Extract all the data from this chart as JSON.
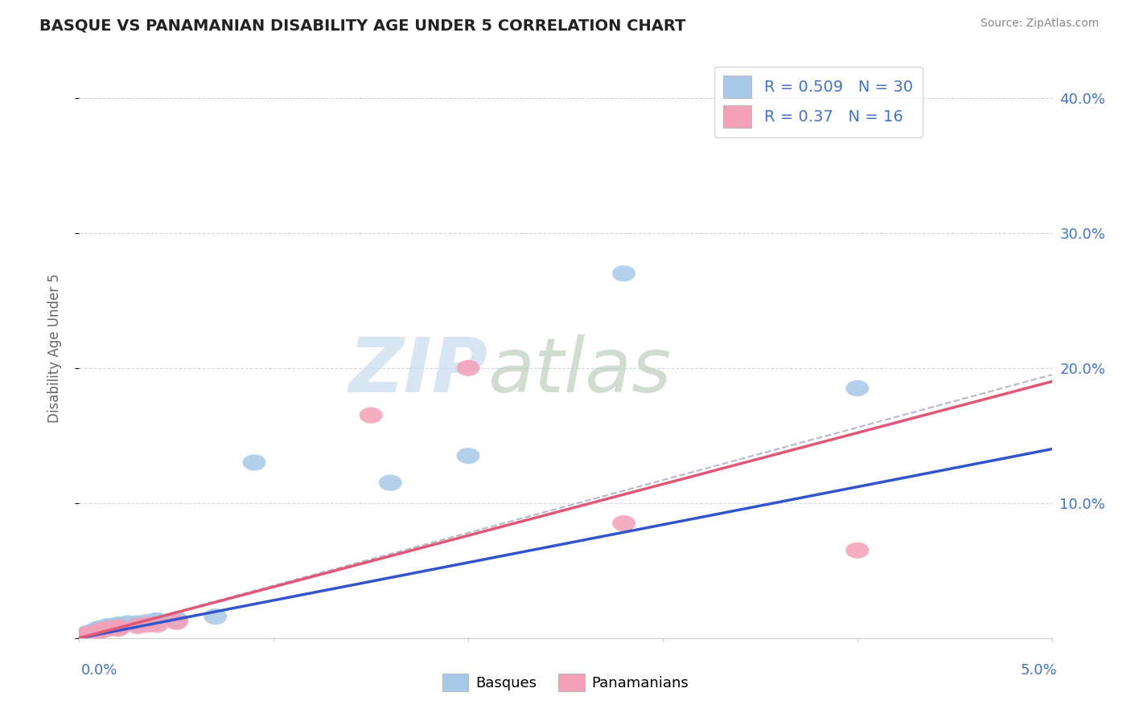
{
  "title": "BASQUE VS PANAMANIAN DISABILITY AGE UNDER 5 CORRELATION CHART",
  "source": "Source: ZipAtlas.com",
  "ylabel": "Disability Age Under 5",
  "x_range": [
    0.0,
    0.05
  ],
  "y_range": [
    0.0,
    0.43
  ],
  "basque_R": 0.509,
  "basque_N": 30,
  "panama_R": 0.37,
  "panama_N": 16,
  "basque_color": "#a8c8e8",
  "panama_color": "#f4a0b8",
  "basque_line_color": "#3355cc",
  "panama_line_color": "#e05878",
  "dashed_color": "#b8b8c8",
  "label_color": "#4472c4",
  "grid_color": "#d0d8e8",
  "background_color": "#ffffff",
  "basque_x": [
    0.0002,
    0.0004,
    0.0005,
    0.0006,
    0.0007,
    0.0008,
    0.0009,
    0.001,
    0.001,
    0.0012,
    0.0013,
    0.0015,
    0.0015,
    0.002,
    0.002,
    0.0022,
    0.0025,
    0.003,
    0.003,
    0.0035,
    0.004,
    0.004,
    0.005,
    0.005,
    0.007,
    0.009,
    0.016,
    0.02,
    0.028,
    0.04
  ],
  "basque_y": [
    0.002,
    0.003,
    0.004,
    0.004,
    0.005,
    0.005,
    0.006,
    0.006,
    0.007,
    0.007,
    0.008,
    0.008,
    0.009,
    0.009,
    0.01,
    0.01,
    0.011,
    0.01,
    0.011,
    0.012,
    0.013,
    0.013,
    0.013,
    0.014,
    0.016,
    0.13,
    0.115,
    0.135,
    0.27,
    0.185
  ],
  "panama_x": [
    0.0003,
    0.0005,
    0.0008,
    0.001,
    0.0012,
    0.0015,
    0.002,
    0.002,
    0.003,
    0.0035,
    0.004,
    0.005,
    0.015,
    0.02,
    0.028,
    0.04
  ],
  "panama_y": [
    0.002,
    0.003,
    0.004,
    0.005,
    0.006,
    0.007,
    0.007,
    0.008,
    0.009,
    0.01,
    0.01,
    0.012,
    0.165,
    0.2,
    0.085,
    0.065
  ]
}
